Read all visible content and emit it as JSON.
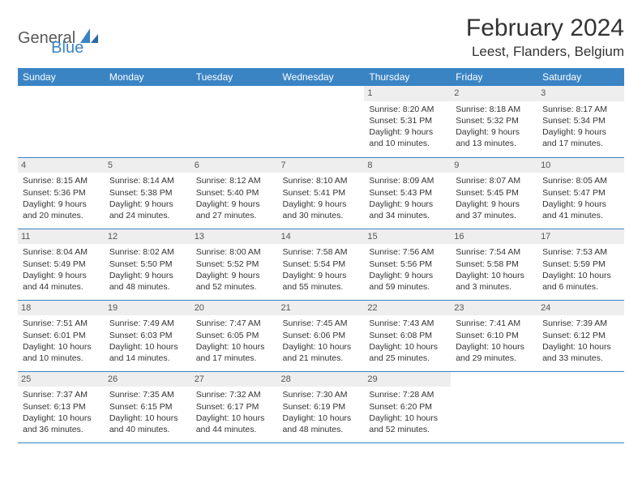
{
  "logo": {
    "general": "General",
    "blue": "Blue"
  },
  "title": "February 2024",
  "location": "Leest, Flanders, Belgium",
  "colors": {
    "header_bg": "#3a84c4",
    "header_fg": "#ffffff",
    "daynum_bg": "#eeeeee",
    "border": "#3a84c4",
    "body_text": "#333333",
    "logo_gray": "#58595b",
    "logo_blue": "#3a84c4",
    "page_bg": "#ffffff"
  },
  "typography": {
    "title_fontsize": 30,
    "location_fontsize": 17,
    "dayheader_fontsize": 12,
    "cell_fontsize": 10.5,
    "daynum_fontsize": 11
  },
  "day_headers": [
    "Sunday",
    "Monday",
    "Tuesday",
    "Wednesday",
    "Thursday",
    "Friday",
    "Saturday"
  ],
  "weeks": [
    [
      null,
      null,
      null,
      null,
      {
        "n": "1",
        "sunrise": "Sunrise: 8:20 AM",
        "sunset": "Sunset: 5:31 PM",
        "daylight": "Daylight: 9 hours and 10 minutes."
      },
      {
        "n": "2",
        "sunrise": "Sunrise: 8:18 AM",
        "sunset": "Sunset: 5:32 PM",
        "daylight": "Daylight: 9 hours and 13 minutes."
      },
      {
        "n": "3",
        "sunrise": "Sunrise: 8:17 AM",
        "sunset": "Sunset: 5:34 PM",
        "daylight": "Daylight: 9 hours and 17 minutes."
      }
    ],
    [
      {
        "n": "4",
        "sunrise": "Sunrise: 8:15 AM",
        "sunset": "Sunset: 5:36 PM",
        "daylight": "Daylight: 9 hours and 20 minutes."
      },
      {
        "n": "5",
        "sunrise": "Sunrise: 8:14 AM",
        "sunset": "Sunset: 5:38 PM",
        "daylight": "Daylight: 9 hours and 24 minutes."
      },
      {
        "n": "6",
        "sunrise": "Sunrise: 8:12 AM",
        "sunset": "Sunset: 5:40 PM",
        "daylight": "Daylight: 9 hours and 27 minutes."
      },
      {
        "n": "7",
        "sunrise": "Sunrise: 8:10 AM",
        "sunset": "Sunset: 5:41 PM",
        "daylight": "Daylight: 9 hours and 30 minutes."
      },
      {
        "n": "8",
        "sunrise": "Sunrise: 8:09 AM",
        "sunset": "Sunset: 5:43 PM",
        "daylight": "Daylight: 9 hours and 34 minutes."
      },
      {
        "n": "9",
        "sunrise": "Sunrise: 8:07 AM",
        "sunset": "Sunset: 5:45 PM",
        "daylight": "Daylight: 9 hours and 37 minutes."
      },
      {
        "n": "10",
        "sunrise": "Sunrise: 8:05 AM",
        "sunset": "Sunset: 5:47 PM",
        "daylight": "Daylight: 9 hours and 41 minutes."
      }
    ],
    [
      {
        "n": "11",
        "sunrise": "Sunrise: 8:04 AM",
        "sunset": "Sunset: 5:49 PM",
        "daylight": "Daylight: 9 hours and 44 minutes."
      },
      {
        "n": "12",
        "sunrise": "Sunrise: 8:02 AM",
        "sunset": "Sunset: 5:50 PM",
        "daylight": "Daylight: 9 hours and 48 minutes."
      },
      {
        "n": "13",
        "sunrise": "Sunrise: 8:00 AM",
        "sunset": "Sunset: 5:52 PM",
        "daylight": "Daylight: 9 hours and 52 minutes."
      },
      {
        "n": "14",
        "sunrise": "Sunrise: 7:58 AM",
        "sunset": "Sunset: 5:54 PM",
        "daylight": "Daylight: 9 hours and 55 minutes."
      },
      {
        "n": "15",
        "sunrise": "Sunrise: 7:56 AM",
        "sunset": "Sunset: 5:56 PM",
        "daylight": "Daylight: 9 hours and 59 minutes."
      },
      {
        "n": "16",
        "sunrise": "Sunrise: 7:54 AM",
        "sunset": "Sunset: 5:58 PM",
        "daylight": "Daylight: 10 hours and 3 minutes."
      },
      {
        "n": "17",
        "sunrise": "Sunrise: 7:53 AM",
        "sunset": "Sunset: 5:59 PM",
        "daylight": "Daylight: 10 hours and 6 minutes."
      }
    ],
    [
      {
        "n": "18",
        "sunrise": "Sunrise: 7:51 AM",
        "sunset": "Sunset: 6:01 PM",
        "daylight": "Daylight: 10 hours and 10 minutes."
      },
      {
        "n": "19",
        "sunrise": "Sunrise: 7:49 AM",
        "sunset": "Sunset: 6:03 PM",
        "daylight": "Daylight: 10 hours and 14 minutes."
      },
      {
        "n": "20",
        "sunrise": "Sunrise: 7:47 AM",
        "sunset": "Sunset: 6:05 PM",
        "daylight": "Daylight: 10 hours and 17 minutes."
      },
      {
        "n": "21",
        "sunrise": "Sunrise: 7:45 AM",
        "sunset": "Sunset: 6:06 PM",
        "daylight": "Daylight: 10 hours and 21 minutes."
      },
      {
        "n": "22",
        "sunrise": "Sunrise: 7:43 AM",
        "sunset": "Sunset: 6:08 PM",
        "daylight": "Daylight: 10 hours and 25 minutes."
      },
      {
        "n": "23",
        "sunrise": "Sunrise: 7:41 AM",
        "sunset": "Sunset: 6:10 PM",
        "daylight": "Daylight: 10 hours and 29 minutes."
      },
      {
        "n": "24",
        "sunrise": "Sunrise: 7:39 AM",
        "sunset": "Sunset: 6:12 PM",
        "daylight": "Daylight: 10 hours and 33 minutes."
      }
    ],
    [
      {
        "n": "25",
        "sunrise": "Sunrise: 7:37 AM",
        "sunset": "Sunset: 6:13 PM",
        "daylight": "Daylight: 10 hours and 36 minutes."
      },
      {
        "n": "26",
        "sunrise": "Sunrise: 7:35 AM",
        "sunset": "Sunset: 6:15 PM",
        "daylight": "Daylight: 10 hours and 40 minutes."
      },
      {
        "n": "27",
        "sunrise": "Sunrise: 7:32 AM",
        "sunset": "Sunset: 6:17 PM",
        "daylight": "Daylight: 10 hours and 44 minutes."
      },
      {
        "n": "28",
        "sunrise": "Sunrise: 7:30 AM",
        "sunset": "Sunset: 6:19 PM",
        "daylight": "Daylight: 10 hours and 48 minutes."
      },
      {
        "n": "29",
        "sunrise": "Sunrise: 7:28 AM",
        "sunset": "Sunset: 6:20 PM",
        "daylight": "Daylight: 10 hours and 52 minutes."
      },
      null,
      null
    ]
  ]
}
